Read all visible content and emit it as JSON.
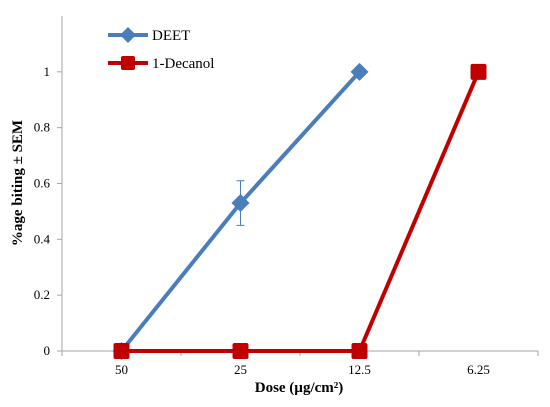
{
  "chart_data": {
    "type": "line",
    "categories": [
      "50",
      "25",
      "12.5",
      "6.25"
    ],
    "xlabel": "Dose (µg/cm²)",
    "ylabel": "%age biting ± SEM",
    "ylim": [
      0,
      1.2
    ],
    "yticks": [
      "0",
      "0.2",
      "0.4",
      "0.6",
      "0.8",
      "1"
    ],
    "grid": false,
    "legend_position": "top-left",
    "series": [
      {
        "name": "DEET",
        "color": "#4a7ebb",
        "marker": "diamond",
        "values": [
          0,
          0.53,
          1,
          null
        ],
        "error": [
          0,
          0.08,
          0,
          null
        ]
      },
      {
        "name": "1-Decanol",
        "color": "#c00000",
        "marker": "square",
        "values": [
          0,
          0,
          0,
          1
        ],
        "error": [
          0,
          0,
          0,
          0
        ]
      }
    ]
  }
}
